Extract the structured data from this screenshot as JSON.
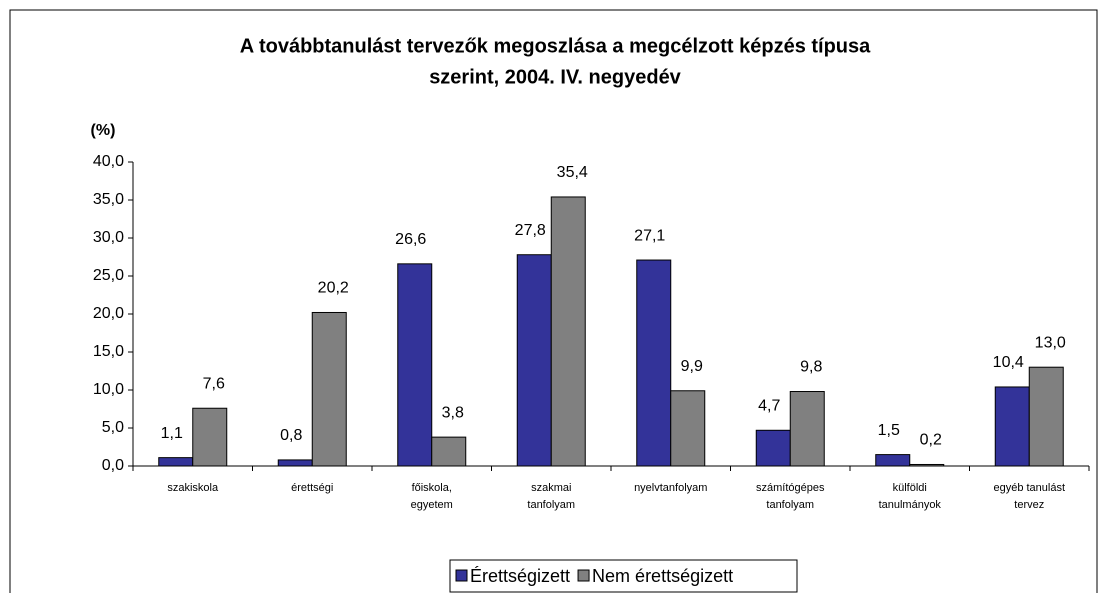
{
  "chart_data": {
    "type": "bar",
    "title": [
      "A továbbtanulást tervezők megoszlása a megcélzott képzés típusa",
      "szerint, 2004. IV. negyedév"
    ],
    "ylabel": "(%)",
    "categories": [
      "szakiskola",
      "érettségi",
      "főiskola,\negyetem",
      "szakmai\ntanfolyam",
      "nyelvtanfolyam",
      "számítógépes\ntanfolyam",
      "külföldi\ntanulmányok",
      "egyéb tanulást\ntervez"
    ],
    "series": [
      {
        "name": "Érettségizett",
        "color": "#333399",
        "values": [
          1.1,
          0.8,
          26.6,
          27.8,
          27.1,
          4.7,
          1.5,
          10.4
        ],
        "value_labels": [
          "1,1",
          "0,8",
          "26,6",
          "27,8",
          "27,1",
          "4,7",
          "1,5",
          "10,4"
        ]
      },
      {
        "name": "Nem érettségizett",
        "color": "#808080",
        "values": [
          7.6,
          20.2,
          3.8,
          35.4,
          9.9,
          9.8,
          0.2,
          13.0
        ],
        "value_labels": [
          "7,6",
          "20,2",
          "3,8",
          "35,4",
          "9,9",
          "9,8",
          "0,2",
          "13,0"
        ]
      }
    ],
    "ylim": [
      0,
      40
    ],
    "yticks": [
      {
        "value": 0,
        "label": "0,0"
      },
      {
        "value": 5,
        "label": "5,0"
      },
      {
        "value": 10,
        "label": "10,0"
      },
      {
        "value": 15,
        "label": "15,0"
      },
      {
        "value": 20,
        "label": "20,0"
      },
      {
        "value": 25,
        "label": "25,0"
      },
      {
        "value": 30,
        "label": "30,0"
      },
      {
        "value": 35,
        "label": "35,0"
      },
      {
        "value": 40,
        "label": "40,0"
      }
    ],
    "legend": "bottom"
  }
}
